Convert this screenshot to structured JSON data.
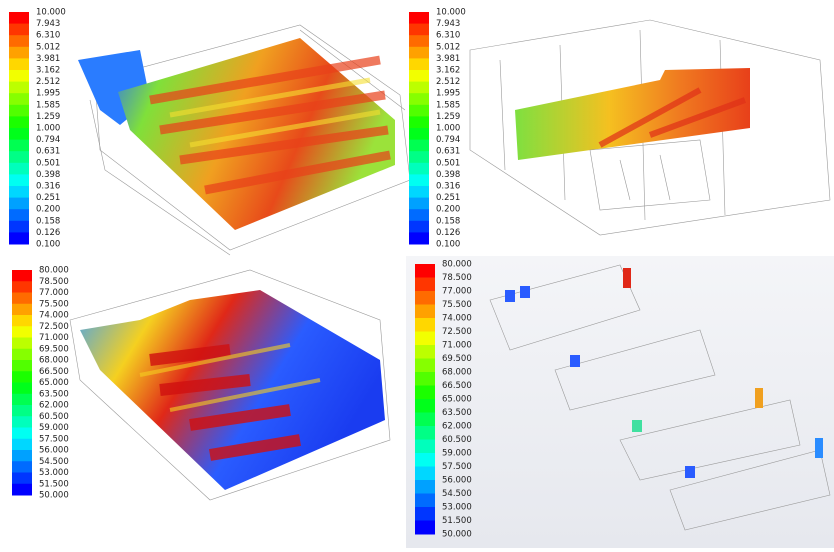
{
  "panels": [
    {
      "legend_labels": [
        "10.000",
        "7.943",
        "6.310",
        "5.012",
        "3.981",
        "3.162",
        "2.512",
        "1.995",
        "1.585",
        "1.259",
        "1.000",
        "0.794",
        "0.631",
        "0.501",
        "0.398",
        "0.316",
        "0.251",
        "0.200",
        "0.158",
        "0.126",
        "0.100"
      ]
    },
    {
      "legend_labels": [
        "10.000",
        "7.943",
        "6.310",
        "5.012",
        "3.981",
        "3.162",
        "2.512",
        "1.995",
        "1.585",
        "1.259",
        "1.000",
        "0.794",
        "0.631",
        "0.501",
        "0.398",
        "0.316",
        "0.251",
        "0.200",
        "0.158",
        "0.126",
        "0.100"
      ]
    },
    {
      "legend_labels": [
        "80.000",
        "78.500",
        "77.000",
        "75.500",
        "74.000",
        "72.500",
        "71.000",
        "69.500",
        "68.000",
        "66.500",
        "65.000",
        "63.500",
        "62.000",
        "60.500",
        "59.000",
        "57.500",
        "56.000",
        "54.500",
        "53.000",
        "51.500",
        "50.000"
      ]
    },
    {
      "legend_labels": [
        "80.000",
        "78.500",
        "77.000",
        "75.500",
        "74.000",
        "72.500",
        "71.000",
        "69.500",
        "68.000",
        "66.500",
        "65.000",
        "63.500",
        "62.000",
        "60.500",
        "59.000",
        "57.500",
        "56.000",
        "54.500",
        "53.000",
        "51.500",
        "50.000"
      ]
    }
  ]
}
